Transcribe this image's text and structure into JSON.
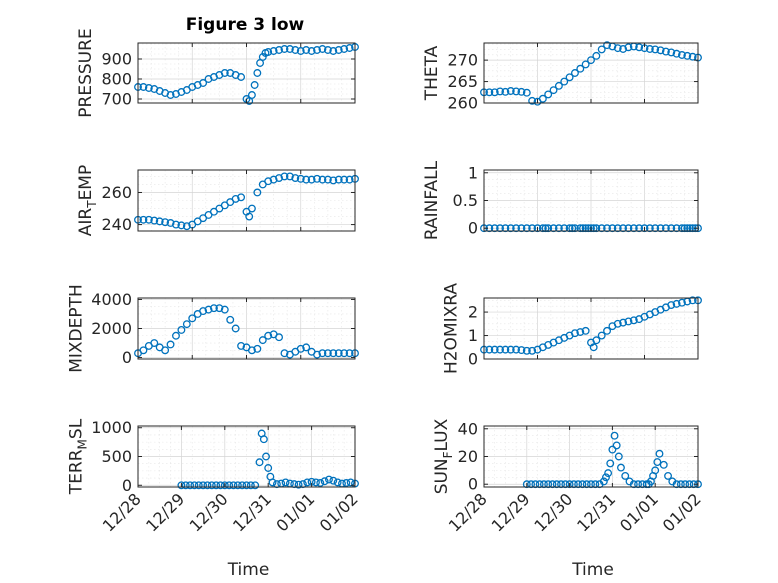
{
  "figure": {
    "title": "Figure 3 low"
  },
  "chart_data": [
    {
      "type": "scatter",
      "ylabel": "PRESSURE",
      "ylim": [
        680,
        980
      ],
      "yticks": [
        700,
        800,
        900
      ],
      "yticklabels": [
        "700",
        "800",
        "900"
      ],
      "xlim": [
        29.0,
        33.0
      ],
      "grid": true,
      "marker": "circle",
      "color": "#0072bd",
      "x": [
        29.0,
        29.1,
        29.2,
        29.3,
        29.4,
        29.5,
        29.6,
        29.7,
        29.8,
        29.9,
        30.0,
        30.1,
        30.2,
        30.3,
        30.4,
        30.5,
        30.6,
        30.7,
        30.8,
        30.9,
        31.0,
        31.05,
        31.1,
        31.15,
        31.2,
        31.25,
        31.3,
        31.35,
        31.4,
        31.5,
        31.6,
        31.7,
        31.8,
        31.9,
        32.0,
        32.1,
        32.2,
        32.3,
        32.4,
        32.5,
        32.6,
        32.7,
        32.8,
        32.9,
        33.0
      ],
      "y": [
        760,
        760,
        755,
        750,
        740,
        730,
        720,
        725,
        735,
        745,
        760,
        770,
        780,
        800,
        810,
        820,
        830,
        830,
        820,
        810,
        700,
        690,
        720,
        770,
        830,
        880,
        910,
        930,
        935,
        940,
        945,
        950,
        950,
        945,
        940,
        945,
        940,
        945,
        950,
        945,
        940,
        945,
        950,
        955,
        960
      ]
    },
    {
      "type": "scatter",
      "ylabel": "THETA",
      "ylim": [
        260,
        274
      ],
      "yticks": [
        260,
        265,
        270
      ],
      "yticklabels": [
        "260",
        "265",
        "270"
      ],
      "xlim": [
        29.0,
        33.0
      ],
      "grid": true,
      "marker": "circle",
      "color": "#0072bd",
      "x": [
        29.0,
        29.1,
        29.2,
        29.3,
        29.4,
        29.5,
        29.6,
        29.7,
        29.8,
        29.9,
        30.0,
        30.1,
        30.2,
        30.3,
        30.4,
        30.5,
        30.6,
        30.7,
        30.8,
        30.9,
        31.0,
        31.1,
        31.2,
        31.3,
        31.4,
        31.5,
        31.6,
        31.7,
        31.8,
        31.9,
        32.0,
        32.1,
        32.2,
        32.3,
        32.4,
        32.5,
        32.6,
        32.7,
        32.8,
        32.9,
        33.0
      ],
      "y": [
        262.5,
        262.5,
        262.5,
        262.7,
        262.6,
        262.8,
        262.7,
        262.6,
        262.4,
        260.5,
        260.3,
        261.0,
        262.0,
        263.0,
        264.0,
        265.0,
        266.0,
        267.0,
        268.0,
        269.0,
        270.0,
        271.0,
        272.5,
        273.5,
        273.2,
        272.8,
        272.6,
        273.0,
        273.2,
        273.0,
        272.8,
        272.6,
        272.5,
        272.3,
        272.0,
        271.8,
        271.5,
        271.2,
        271.0,
        270.8,
        270.6
      ]
    },
    {
      "type": "scatter",
      "ylabel": "AIR_TEMP",
      "ylim": [
        236,
        274
      ],
      "yticks": [
        240,
        260
      ],
      "yticklabels": [
        "240",
        "260"
      ],
      "xlim": [
        29.0,
        33.0
      ],
      "grid": true,
      "marker": "circle",
      "color": "#0072bd",
      "x": [
        29.0,
        29.1,
        29.2,
        29.3,
        29.4,
        29.5,
        29.6,
        29.7,
        29.8,
        29.9,
        30.0,
        30.1,
        30.2,
        30.3,
        30.4,
        30.5,
        30.6,
        30.7,
        30.8,
        30.9,
        31.0,
        31.05,
        31.1,
        31.2,
        31.3,
        31.4,
        31.5,
        31.6,
        31.7,
        31.8,
        31.9,
        32.0,
        32.1,
        32.2,
        32.3,
        32.4,
        32.5,
        32.6,
        32.7,
        32.8,
        32.9,
        33.0
      ],
      "y": [
        243,
        243,
        243,
        242.5,
        242,
        241.5,
        241,
        240,
        239.5,
        239,
        240,
        242,
        244,
        246,
        248,
        250,
        252,
        254,
        256,
        257,
        248,
        245,
        250,
        260,
        265,
        267,
        268,
        269,
        270,
        270,
        269,
        268.5,
        268,
        268,
        268.5,
        268,
        268,
        267.5,
        268,
        268,
        268,
        268.5
      ]
    },
    {
      "type": "scatter",
      "ylabel": "RAINFALL",
      "ylim": [
        -0.05,
        1.05
      ],
      "yticks": [
        0,
        0.5,
        1
      ],
      "yticklabels": [
        "0",
        "0.5",
        "1"
      ],
      "xlim": [
        29.0,
        33.0
      ],
      "grid": true,
      "marker": "circle",
      "color": "#0072bd",
      "x": [
        29.0,
        29.1,
        29.2,
        29.3,
        29.4,
        29.5,
        29.6,
        29.7,
        29.8,
        29.9,
        30.0,
        30.1,
        30.15,
        30.2,
        30.3,
        30.4,
        30.5,
        30.6,
        30.65,
        30.7,
        30.8,
        30.85,
        30.9,
        30.95,
        31.0,
        31.05,
        31.1,
        31.2,
        31.3,
        31.4,
        31.5,
        31.6,
        31.7,
        31.8,
        31.9,
        32.0,
        32.1,
        32.2,
        32.3,
        32.4,
        32.5,
        32.6,
        32.7,
        32.75,
        32.8,
        32.85,
        32.9,
        32.95,
        33.0
      ],
      "y": [
        0,
        0,
        0,
        0,
        0,
        0,
        0,
        0,
        0,
        0,
        0,
        0,
        0,
        0,
        0,
        0,
        0,
        0,
        0,
        0,
        0,
        0,
        0,
        0,
        0,
        0,
        0,
        0,
        0,
        0,
        0,
        0,
        0,
        0,
        0,
        0,
        0,
        0,
        0,
        0,
        0,
        0,
        0,
        0,
        0,
        0,
        0,
        0,
        0
      ]
    },
    {
      "type": "scatter",
      "ylabel": "MIXDEPTH",
      "ylim": [
        -100,
        4100
      ],
      "yticks": [
        0,
        2000,
        4000
      ],
      "yticklabels": [
        "0",
        "2000",
        "4000"
      ],
      "xlim": [
        29.0,
        33.0
      ],
      "grid": true,
      "marker": "circle",
      "color": "#0072bd",
      "x": [
        29.0,
        29.1,
        29.2,
        29.3,
        29.4,
        29.5,
        29.6,
        29.7,
        29.8,
        29.9,
        30.0,
        30.1,
        30.2,
        30.3,
        30.4,
        30.5,
        30.6,
        30.7,
        30.8,
        30.9,
        31.0,
        31.1,
        31.2,
        31.3,
        31.4,
        31.5,
        31.6,
        31.7,
        31.8,
        31.9,
        32.0,
        32.1,
        32.2,
        32.3,
        32.4,
        32.5,
        32.6,
        32.7,
        32.8,
        32.9,
        33.0
      ],
      "y": [
        300,
        500,
        800,
        1000,
        700,
        500,
        900,
        1500,
        1900,
        2300,
        2700,
        3000,
        3200,
        3300,
        3400,
        3400,
        3300,
        2600,
        2000,
        800,
        700,
        500,
        600,
        1200,
        1500,
        1600,
        1400,
        300,
        200,
        400,
        600,
        700,
        400,
        200,
        300,
        300,
        300,
        300,
        300,
        300,
        300
      ]
    },
    {
      "type": "scatter",
      "ylabel": "H2OMIXRA",
      "ylim": [
        0,
        2.6
      ],
      "yticks": [
        0,
        1,
        2
      ],
      "yticklabels": [
        "0",
        "1",
        "2"
      ],
      "xlim": [
        29.0,
        33.0
      ],
      "grid": true,
      "marker": "circle",
      "color": "#0072bd",
      "x": [
        29.0,
        29.1,
        29.2,
        29.3,
        29.4,
        29.5,
        29.6,
        29.7,
        29.8,
        29.9,
        30.0,
        30.1,
        30.2,
        30.3,
        30.4,
        30.5,
        30.6,
        30.7,
        30.8,
        30.9,
        31.0,
        31.05,
        31.1,
        31.2,
        31.3,
        31.4,
        31.5,
        31.6,
        31.7,
        31.8,
        31.9,
        32.0,
        32.1,
        32.2,
        32.3,
        32.4,
        32.5,
        32.6,
        32.7,
        32.8,
        32.9,
        33.0
      ],
      "y": [
        0.4,
        0.4,
        0.4,
        0.4,
        0.4,
        0.4,
        0.4,
        0.38,
        0.35,
        0.35,
        0.4,
        0.5,
        0.6,
        0.7,
        0.8,
        0.9,
        1.0,
        1.1,
        1.15,
        1.2,
        0.7,
        0.5,
        0.8,
        1.0,
        1.2,
        1.4,
        1.5,
        1.55,
        1.6,
        1.65,
        1.7,
        1.8,
        1.9,
        2.0,
        2.1,
        2.2,
        2.3,
        2.35,
        2.4,
        2.45,
        2.5,
        2.5
      ]
    },
    {
      "type": "scatter",
      "ylabel": "TERR_MSL",
      "ylim": [
        -30,
        1030
      ],
      "yticks": [
        0,
        500,
        1000
      ],
      "yticklabels": [
        "0",
        "500",
        "1000"
      ],
      "xlim": [
        28.0,
        33.0
      ],
      "grid": true,
      "marker": "circle",
      "color": "#0072bd",
      "xticks": [
        28,
        29,
        30,
        31,
        32,
        33
      ],
      "xticklabels": [
        "12/28",
        "12/29",
        "12/30",
        "12/31",
        "01/01",
        "01/02"
      ],
      "xlabel": "Time",
      "x": [
        29.0,
        29.1,
        29.2,
        29.3,
        29.4,
        29.5,
        29.6,
        29.7,
        29.8,
        29.9,
        30.0,
        30.1,
        30.2,
        30.3,
        30.4,
        30.5,
        30.6,
        30.7,
        30.8,
        30.85,
        30.9,
        30.95,
        31.0,
        31.05,
        31.1,
        31.2,
        31.3,
        31.4,
        31.5,
        31.6,
        31.7,
        31.8,
        31.9,
        32.0,
        32.1,
        32.2,
        32.3,
        32.4,
        32.5,
        32.6,
        32.7,
        32.8,
        32.9,
        33.0
      ],
      "y": [
        0,
        0,
        0,
        0,
        0,
        0,
        0,
        0,
        0,
        0,
        0,
        0,
        0,
        0,
        0,
        0,
        0,
        0,
        400,
        900,
        800,
        500,
        300,
        150,
        50,
        20,
        30,
        50,
        30,
        20,
        10,
        20,
        50,
        60,
        50,
        40,
        70,
        100,
        80,
        50,
        30,
        40,
        50,
        30
      ]
    },
    {
      "type": "scatter",
      "ylabel": "SUN_FLUX",
      "ylim": [
        -2,
        42
      ],
      "yticks": [
        0,
        20,
        40
      ],
      "yticklabels": [
        "0",
        "20",
        "40"
      ],
      "xlim": [
        28.0,
        33.0
      ],
      "grid": true,
      "marker": "circle",
      "color": "#0072bd",
      "xticks": [
        28,
        29,
        30,
        31,
        32,
        33
      ],
      "xticklabels": [
        "12/28",
        "12/29",
        "12/30",
        "12/31",
        "01/01",
        "01/02"
      ],
      "xlabel": "Time",
      "x": [
        29.0,
        29.1,
        29.2,
        29.3,
        29.4,
        29.5,
        29.6,
        29.7,
        29.8,
        29.9,
        30.0,
        30.1,
        30.2,
        30.3,
        30.4,
        30.5,
        30.6,
        30.7,
        30.8,
        30.85,
        30.9,
        30.95,
        31.0,
        31.05,
        31.1,
        31.15,
        31.2,
        31.3,
        31.4,
        31.5,
        31.6,
        31.7,
        31.8,
        31.85,
        31.9,
        31.95,
        32.0,
        32.05,
        32.1,
        32.2,
        32.3,
        32.4,
        32.5,
        32.6,
        32.7,
        32.8,
        32.9,
        33.0
      ],
      "y": [
        0,
        0,
        0,
        0,
        0,
        0,
        0,
        0,
        0,
        0,
        0,
        0,
        0,
        0,
        0,
        0,
        0,
        0,
        2,
        5,
        8,
        15,
        25,
        35,
        28,
        20,
        12,
        6,
        2,
        0,
        0,
        0,
        0,
        0,
        2,
        6,
        10,
        16,
        22,
        14,
        6,
        2,
        0,
        0,
        0,
        0,
        0,
        0
      ]
    }
  ]
}
